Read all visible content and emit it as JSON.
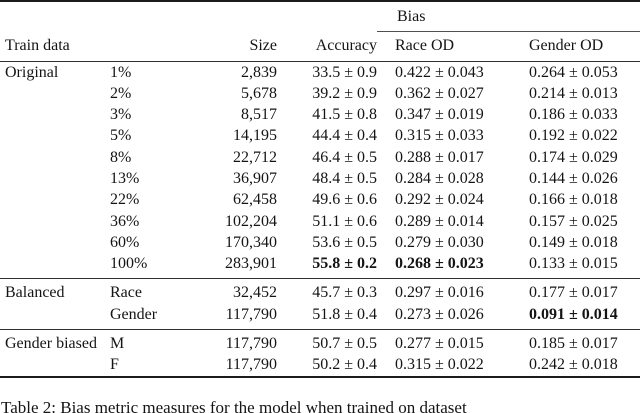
{
  "table": {
    "header": {
      "bias_group": "Bias",
      "train_data": "Train data",
      "size": "Size",
      "accuracy": "Accuracy",
      "race_od": "Race OD",
      "gender_od": "Gender OD"
    },
    "sections": [
      {
        "group": "Original",
        "rows": [
          {
            "sub": "1%",
            "size": "2,839",
            "acc": "33.5 ± 0.9",
            "race": "0.422 ± 0.043",
            "gender": "0.264 ± 0.053",
            "bold": []
          },
          {
            "sub": "2%",
            "size": "5,678",
            "acc": "39.2 ± 0.9",
            "race": "0.362 ± 0.027",
            "gender": "0.214 ± 0.013",
            "bold": []
          },
          {
            "sub": "3%",
            "size": "8,517",
            "acc": "41.5 ± 0.8",
            "race": "0.347 ± 0.019",
            "gender": "0.186 ± 0.033",
            "bold": []
          },
          {
            "sub": "5%",
            "size": "14,195",
            "acc": "44.4 ± 0.4",
            "race": "0.315 ± 0.033",
            "gender": "0.192 ± 0.022",
            "bold": []
          },
          {
            "sub": "8%",
            "size": "22,712",
            "acc": "46.4 ± 0.5",
            "race": "0.288 ± 0.017",
            "gender": "0.174 ± 0.029",
            "bold": []
          },
          {
            "sub": "13%",
            "size": "36,907",
            "acc": "48.4 ± 0.5",
            "race": "0.284 ± 0.028",
            "gender": "0.144 ± 0.026",
            "bold": []
          },
          {
            "sub": "22%",
            "size": "62,458",
            "acc": "49.6 ± 0.6",
            "race": "0.292 ± 0.024",
            "gender": "0.166 ± 0.018",
            "bold": []
          },
          {
            "sub": "36%",
            "size": "102,204",
            "acc": "51.1 ± 0.6",
            "race": "0.289 ± 0.014",
            "gender": "0.157 ± 0.025",
            "bold": []
          },
          {
            "sub": "60%",
            "size": "170,340",
            "acc": "53.6 ± 0.5",
            "race": "0.279 ± 0.030",
            "gender": "0.149 ± 0.018",
            "bold": []
          },
          {
            "sub": "100%",
            "size": "283,901",
            "acc": "55.8 ± 0.2",
            "race": "0.268 ± 0.023",
            "gender": "0.133 ± 0.015",
            "bold": [
              "acc",
              "race"
            ]
          }
        ]
      },
      {
        "group": "Balanced",
        "rows": [
          {
            "sub": "Race",
            "size": "32,452",
            "acc": "45.7 ± 0.3",
            "race": "0.297 ± 0.016",
            "gender": "0.177 ± 0.017",
            "bold": []
          },
          {
            "sub": "Gender",
            "size": "117,790",
            "acc": "51.8 ± 0.4",
            "race": "0.273 ± 0.026",
            "gender": "0.091 ± 0.014",
            "bold": [
              "gender"
            ]
          }
        ]
      },
      {
        "group": "Gender biased",
        "rows": [
          {
            "sub": "M",
            "size": "117,790",
            "acc": "50.7 ± 0.5",
            "race": "0.277 ± 0.015",
            "gender": "0.185 ± 0.017",
            "bold": []
          },
          {
            "sub": "F",
            "size": "117,790",
            "acc": "50.2 ± 0.4",
            "race": "0.315 ± 0.022",
            "gender": "0.242 ± 0.018",
            "bold": []
          }
        ]
      }
    ]
  },
  "caption": "Table 2: Bias metric measures for the model when trained on dataset"
}
